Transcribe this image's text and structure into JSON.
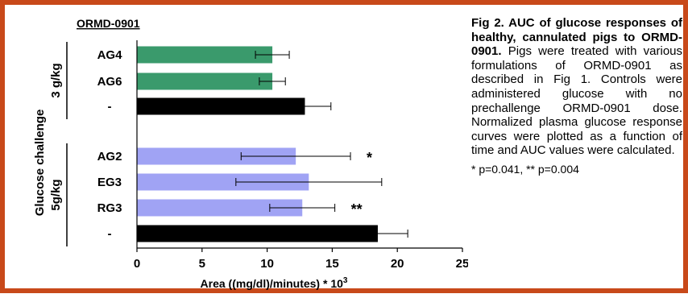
{
  "chart_data": {
    "type": "bar",
    "orientation": "horizontal",
    "title": "ORMD-0901",
    "xlabel": "Area ((mg/dl)/minutes) * 10",
    "xlabel_superscript": "3",
    "ylabel": "Glucose challenge",
    "xlim": [
      0,
      25
    ],
    "xticks": [
      "0",
      "5",
      "10",
      "15",
      "20",
      "25"
    ],
    "groups": [
      {
        "label": "3 g/kg"
      },
      {
        "label": "5g/kg"
      }
    ],
    "bars": [
      {
        "label": "AG4",
        "group": 0,
        "value": 10.4,
        "error": 1.3,
        "color": "#3a9a6c",
        "annotation": ""
      },
      {
        "label": "AG6",
        "group": 0,
        "value": 10.4,
        "error": 1.0,
        "color": "#3a9a6c",
        "annotation": ""
      },
      {
        "label": "-",
        "group": 0,
        "value": 12.9,
        "error": 2.0,
        "color": "#000000",
        "annotation": ""
      },
      {
        "label": "AG2",
        "group": 1,
        "value": 12.2,
        "error": 4.2,
        "color": "#a0a3f4",
        "annotation": "*"
      },
      {
        "label": "EG3",
        "group": 1,
        "value": 13.2,
        "error": 5.6,
        "color": "#a0a3f4",
        "annotation": ""
      },
      {
        "label": "RG3",
        "group": 1,
        "value": 12.7,
        "error": 2.5,
        "color": "#a0a3f4",
        "annotation": "**"
      },
      {
        "label": "-",
        "group": 1,
        "value": 18.5,
        "error": 2.3,
        "color": "#000000",
        "annotation": ""
      }
    ]
  },
  "caption": {
    "title": "Fig 2. AUC of glucose responses of healthy, cannulated pigs to ORMD-0901.",
    "body": "Pigs were treated with various formulations of ORMD-0901 as described in Fig 1. Controls were administered glucose with no prechallenge ORMD-0901 dose. Normalized plasma glucose response curves were plotted as a function of time and AUC values were calculated.",
    "significance": "* p=0.041, ** p=0.004"
  },
  "colors": {
    "frame": "#c8491a"
  }
}
